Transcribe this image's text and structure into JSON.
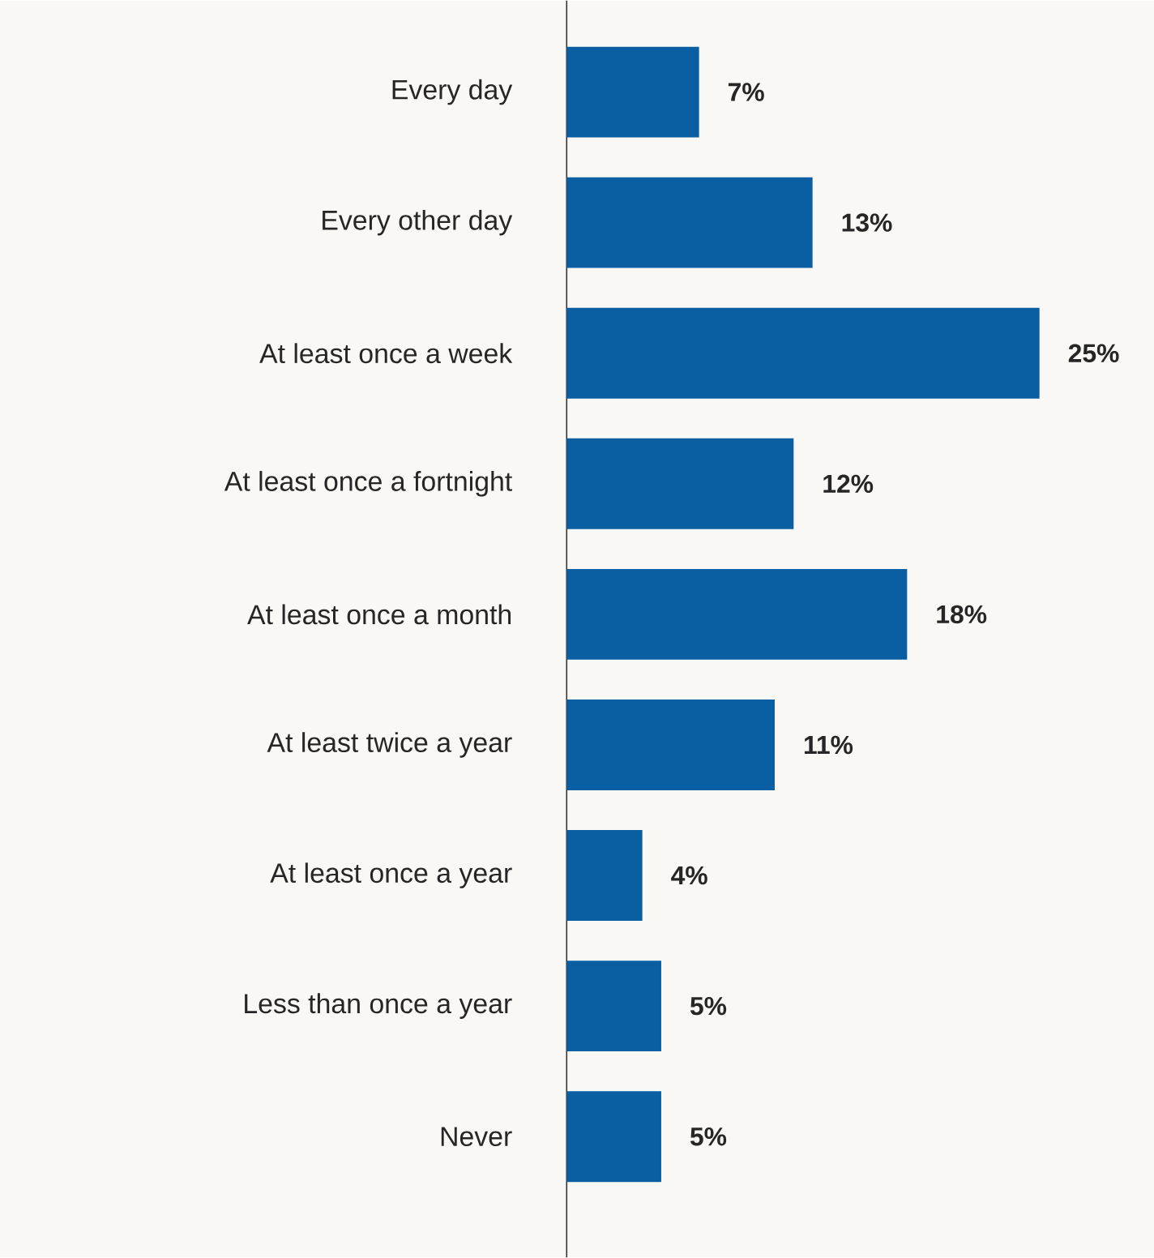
{
  "chart_data": {
    "type": "bar",
    "orientation": "horizontal",
    "categories": [
      "Every day",
      "Every other day",
      "At least once a week",
      "At least once a fortnight",
      "At least once a month",
      "At least twice a year",
      "At least once a year",
      "Less than once a year",
      "Never"
    ],
    "values": [
      7,
      13,
      25,
      12,
      18,
      11,
      4,
      5,
      5
    ],
    "value_labels": [
      "7%",
      "13%",
      "25%",
      "12%",
      "18%",
      "11%",
      "4%",
      "5%",
      "5%"
    ],
    "color": "#0a5fa3"
  }
}
